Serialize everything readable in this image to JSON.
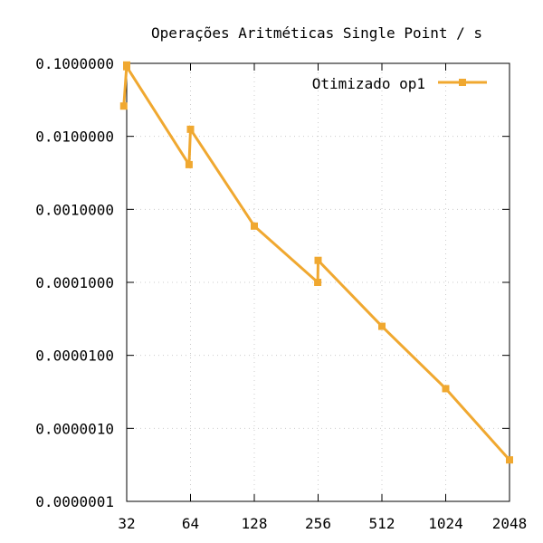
{
  "chart_data": {
    "type": "line",
    "title": "Operações Aritméticas Single Point / s",
    "xlabel": "",
    "ylabel": "",
    "x_scale": "log2",
    "y_scale": "log10",
    "xlim": [
      32,
      2048
    ],
    "ylim": [
      1e-07,
      0.1
    ],
    "x_ticks": [
      32,
      64,
      128,
      256,
      512,
      1024,
      2048
    ],
    "x_tick_labels": [
      "32",
      "64",
      "128",
      "256",
      "512",
      "1024",
      "2048"
    ],
    "y_ticks": [
      0.1,
      0.01,
      0.001,
      0.0001,
      1e-05,
      1e-06,
      1e-07
    ],
    "y_tick_labels": [
      "0.1000000",
      "0.0100000",
      "0.0010000",
      "0.0001000",
      "0.0000100",
      "0.0000010",
      "0.0000001"
    ],
    "grid": true,
    "legend_position": "top-right",
    "series": [
      {
        "name": "Otimizado op1",
        "color": "#f0a830",
        "marker": "square",
        "x": [
          31,
          32,
          32,
          63,
          64,
          128,
          255,
          256,
          512,
          1024,
          2048
        ],
        "y": [
          0.026,
          0.095,
          0.09,
          0.0041,
          0.0125,
          0.00059,
          0.0001,
          0.0002,
          2.5e-05,
          3.5e-06,
          3.7e-07
        ]
      }
    ]
  }
}
